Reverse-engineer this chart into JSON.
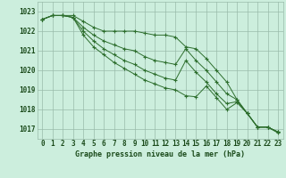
{
  "background_color": "#cceedd",
  "grid_color": "#99bbaa",
  "line_color": "#2d6e2d",
  "marker_color": "#2d6e2d",
  "xlabel": "Graphe pression niveau de la mer (hPa)",
  "xlabel_color": "#1a4a1a",
  "tick_color": "#1a4a1a",
  "ylim": [
    1016.5,
    1023.5
  ],
  "xlim": [
    -0.5,
    23.5
  ],
  "yticks": [
    1017,
    1018,
    1019,
    1020,
    1021,
    1022,
    1023
  ],
  "xticks": [
    0,
    1,
    2,
    3,
    4,
    5,
    6,
    7,
    8,
    9,
    10,
    11,
    12,
    13,
    14,
    15,
    16,
    17,
    18,
    19,
    20,
    21,
    22,
    23
  ],
  "series": [
    [
      1022.6,
      1022.8,
      1022.8,
      1022.8,
      1022.5,
      1022.2,
      1022.0,
      1022.0,
      1022.0,
      1022.0,
      1021.9,
      1021.8,
      1021.8,
      1021.7,
      1021.2,
      1021.1,
      1020.6,
      1020.0,
      1019.4,
      1018.5,
      1017.8,
      1017.1,
      1017.1,
      1016.8
    ],
    [
      1022.6,
      1022.8,
      1022.8,
      1022.7,
      1022.2,
      1021.8,
      1021.5,
      1021.3,
      1021.1,
      1021.0,
      1020.7,
      1020.5,
      1020.4,
      1020.3,
      1021.1,
      1020.5,
      1020.0,
      1019.4,
      1018.8,
      1018.5,
      1017.8,
      1017.1,
      1017.1,
      1016.85
    ],
    [
      1022.6,
      1022.8,
      1022.8,
      1022.7,
      1022.0,
      1021.5,
      1021.1,
      1020.8,
      1020.5,
      1020.3,
      1020.0,
      1019.8,
      1019.6,
      1019.5,
      1020.5,
      1019.9,
      1019.4,
      1018.8,
      1018.3,
      1018.4,
      1017.8,
      1017.1,
      1017.1,
      1016.85
    ],
    [
      1022.6,
      1022.8,
      1022.8,
      1022.7,
      1021.8,
      1021.2,
      1020.8,
      1020.4,
      1020.1,
      1019.8,
      1019.5,
      1019.3,
      1019.1,
      1019.0,
      1018.7,
      1018.65,
      1019.2,
      1018.6,
      1018.0,
      1018.35,
      1017.8,
      1017.1,
      1017.1,
      1016.85
    ]
  ]
}
